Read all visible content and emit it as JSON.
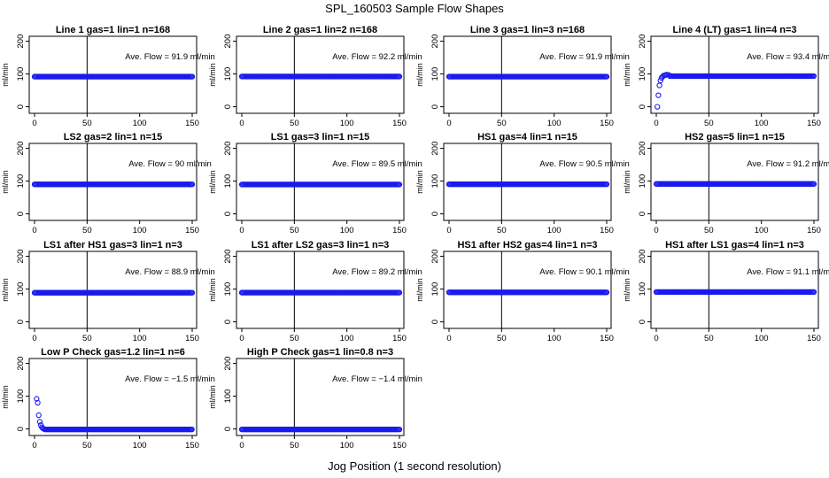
{
  "figure": {
    "title": "SPL_160503  Sample Flow Shapes",
    "xlabel": "Jog Position (1 second resolution)"
  },
  "colors": {
    "points": "#1a1aee",
    "axes": "#000000",
    "background": "#ffffff"
  },
  "chart_data": [
    {
      "type": "scatter",
      "title": "Line 1 gas=1 lin=1 n=168",
      "ylabel": "ml/min",
      "annotation": "Ave. Flow = 91.9  ml/min",
      "xlim": [
        0,
        150
      ],
      "ylim": [
        -20,
        215
      ],
      "xticks": [
        "0",
        "50",
        "100",
        "150"
      ],
      "yticks": [
        "0",
        "100",
        "200"
      ],
      "vline": 50,
      "steady": 91.9,
      "x": [],
      "y": []
    },
    {
      "type": "scatter",
      "title": "Line 2 gas=1 lin=2 n=168",
      "ylabel": "ml/min",
      "annotation": "Ave. Flow = 92.2  ml/min",
      "xlim": [
        0,
        150
      ],
      "ylim": [
        -20,
        215
      ],
      "xticks": [
        "0",
        "50",
        "100",
        "150"
      ],
      "yticks": [
        "0",
        "100",
        "200"
      ],
      "vline": 50,
      "steady": 92.2,
      "x": [],
      "y": []
    },
    {
      "type": "scatter",
      "title": "Line 3 gas=1 lin=3 n=168",
      "ylabel": "ml/min",
      "annotation": "Ave. Flow = 91.9  ml/min",
      "xlim": [
        0,
        150
      ],
      "ylim": [
        -20,
        215
      ],
      "xticks": [
        "0",
        "50",
        "100",
        "150"
      ],
      "yticks": [
        "0",
        "100",
        "200"
      ],
      "vline": 50,
      "steady": 91.9,
      "x": [],
      "y": []
    },
    {
      "type": "scatter",
      "title": "Line 4 (LT) gas=1 lin=4 n=3",
      "ylabel": "ml/min",
      "annotation": "Ave. Flow = 93.4  ml/min",
      "xlim": [
        0,
        150
      ],
      "ylim": [
        -20,
        215
      ],
      "xticks": [
        "0",
        "50",
        "100",
        "150"
      ],
      "yticks": [
        "0",
        "100",
        "200"
      ],
      "vline": 50,
      "steady": 93.4,
      "x": [
        1,
        2,
        3,
        4,
        5,
        6,
        7,
        8,
        9,
        10,
        12
      ],
      "y": [
        0,
        35,
        65,
        80,
        88,
        92,
        95,
        96,
        97,
        98,
        97
      ]
    },
    {
      "type": "scatter",
      "title": "LS2 gas=2 lin=1 n=15",
      "ylabel": "ml/min",
      "annotation": "Ave. Flow = 90  ml/min",
      "xlim": [
        0,
        150
      ],
      "ylim": [
        -20,
        215
      ],
      "xticks": [
        "0",
        "50",
        "100",
        "150"
      ],
      "yticks": [
        "0",
        "100",
        "200"
      ],
      "vline": 50,
      "steady": 90,
      "x": [],
      "y": []
    },
    {
      "type": "scatter",
      "title": "LS1 gas=3 lin=1 n=15",
      "ylabel": "ml/min",
      "annotation": "Ave. Flow = 89.5  ml/min",
      "xlim": [
        0,
        150
      ],
      "ylim": [
        -20,
        215
      ],
      "xticks": [
        "0",
        "50",
        "100",
        "150"
      ],
      "yticks": [
        "0",
        "100",
        "200"
      ],
      "vline": 50,
      "steady": 89.5,
      "x": [],
      "y": []
    },
    {
      "type": "scatter",
      "title": "HS1 gas=4 lin=1 n=15",
      "ylabel": "ml/min",
      "annotation": "Ave. Flow = 90.5  ml/min",
      "xlim": [
        0,
        150
      ],
      "ylim": [
        -20,
        215
      ],
      "xticks": [
        "0",
        "50",
        "100",
        "150"
      ],
      "yticks": [
        "0",
        "100",
        "200"
      ],
      "vline": 50,
      "steady": 90.5,
      "x": [],
      "y": []
    },
    {
      "type": "scatter",
      "title": "HS2 gas=5 lin=1 n=15",
      "ylabel": "ml/min",
      "annotation": "Ave. Flow = 91.2  ml/min",
      "xlim": [
        0,
        150
      ],
      "ylim": [
        -20,
        215
      ],
      "xticks": [
        "0",
        "50",
        "100",
        "150"
      ],
      "yticks": [
        "0",
        "100",
        "200"
      ],
      "vline": 50,
      "steady": 91.2,
      "x": [],
      "y": []
    },
    {
      "type": "scatter",
      "title": "LS1 after HS1 gas=3 lin=1 n=3",
      "ylabel": "ml/min",
      "annotation": "Ave. Flow = 88.9  ml/min",
      "xlim": [
        0,
        150
      ],
      "ylim": [
        -20,
        215
      ],
      "xticks": [
        "0",
        "50",
        "100",
        "150"
      ],
      "yticks": [
        "0",
        "100",
        "200"
      ],
      "vline": 50,
      "steady": 88.9,
      "x": [],
      "y": []
    },
    {
      "type": "scatter",
      "title": "LS1 after LS2 gas=3 lin=1 n=3",
      "ylabel": "ml/min",
      "annotation": "Ave. Flow = 89.2  ml/min",
      "xlim": [
        0,
        150
      ],
      "ylim": [
        -20,
        215
      ],
      "xticks": [
        "0",
        "50",
        "100",
        "150"
      ],
      "yticks": [
        "0",
        "100",
        "200"
      ],
      "vline": 50,
      "steady": 89.2,
      "x": [],
      "y": []
    },
    {
      "type": "scatter",
      "title": "HS1 after HS2 gas=4 lin=1 n=3",
      "ylabel": "ml/min",
      "annotation": "Ave. Flow = 90.1  ml/min",
      "xlim": [
        0,
        150
      ],
      "ylim": [
        -20,
        215
      ],
      "xticks": [
        "0",
        "50",
        "100",
        "150"
      ],
      "yticks": [
        "0",
        "100",
        "200"
      ],
      "vline": 50,
      "steady": 90.1,
      "x": [],
      "y": []
    },
    {
      "type": "scatter",
      "title": "HS1 after LS1 gas=4 lin=1 n=3",
      "ylabel": "ml/min",
      "annotation": "Ave. Flow = 91.1  ml/min",
      "xlim": [
        0,
        150
      ],
      "ylim": [
        -20,
        215
      ],
      "xticks": [
        "0",
        "50",
        "100",
        "150"
      ],
      "yticks": [
        "0",
        "100",
        "200"
      ],
      "vline": 50,
      "steady": 91.1,
      "x": [],
      "y": []
    },
    {
      "type": "scatter",
      "title": "Low P Check gas=1.2 lin=1 n=6",
      "ylabel": "ml/min",
      "annotation": "Ave. Flow = −1.5  ml/min",
      "xlim": [
        0,
        150
      ],
      "ylim": [
        -20,
        215
      ],
      "xticks": [
        "0",
        "50",
        "100",
        "150"
      ],
      "yticks": [
        "0",
        "100",
        "200"
      ],
      "vline": 50,
      "steady": -1.5,
      "x": [
        2,
        3,
        4,
        5,
        6,
        7,
        8,
        9
      ],
      "y": [
        92,
        80,
        42,
        22,
        12,
        5,
        2,
        0
      ]
    },
    {
      "type": "scatter",
      "title": "High P Check gas=1 lin=0.8 n=3",
      "ylabel": "ml/min",
      "annotation": "Ave. Flow = −1.4  ml/min",
      "xlim": [
        0,
        150
      ],
      "ylim": [
        -20,
        215
      ],
      "xticks": [
        "0",
        "50",
        "100",
        "150"
      ],
      "yticks": [
        "0",
        "100",
        "200"
      ],
      "vline": 50,
      "steady": -1.4,
      "x": [],
      "y": []
    }
  ]
}
